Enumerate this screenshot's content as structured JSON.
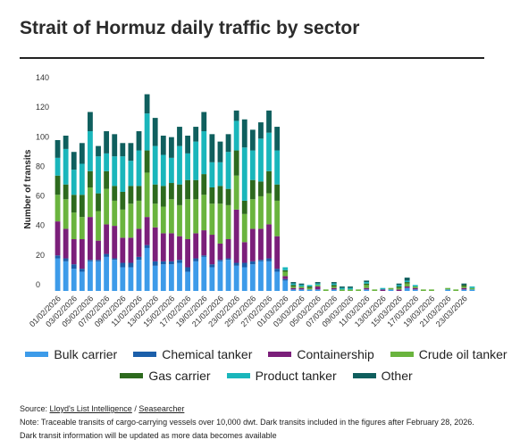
{
  "title": "Strait of Hormuz daily traffic by sector",
  "source": {
    "prefix": "Source: ",
    "link1": "Lloyd's List Intelligence",
    "separator": " / ",
    "link2": "Seasearcher"
  },
  "note_line1": "Note: Traceable transits of cargo-carrying vessels over 10,000 dwt. Dark transits included in the figures after February 28, 2026.",
  "note_line2": "Dark transit information will be updated as more data becomes available",
  "chart_data": {
    "type": "bar",
    "stacked": true,
    "ylabel": "Number of transits",
    "xlabel": "",
    "ylim": [
      0,
      140
    ],
    "yticks": [
      0,
      20,
      40,
      60,
      80,
      100,
      120,
      140
    ],
    "grid": false,
    "legend_position": "bottom",
    "categories": [
      "01/02/2026",
      "02/02/2026",
      "03/02/2026",
      "04/02/2026",
      "05/02/2026",
      "06/02/2026",
      "07/02/2026",
      "08/02/2026",
      "09/02/2026",
      "10/02/2026",
      "11/02/2026",
      "12/02/2026",
      "13/02/2026",
      "14/02/2026",
      "15/02/2026",
      "16/02/2026",
      "17/02/2026",
      "18/02/2026",
      "19/02/2026",
      "20/02/2026",
      "21/02/2026",
      "22/02/2026",
      "23/02/2026",
      "24/02/2026",
      "25/02/2026",
      "26/02/2026",
      "27/02/2026",
      "28/02/2026",
      "01/03/2026",
      "02/03/2026",
      "03/03/2026",
      "04/03/2026",
      "05/03/2026",
      "06/03/2026",
      "07/03/2026",
      "08/03/2026",
      "09/03/2026",
      "10/03/2026",
      "11/03/2026",
      "12/03/2026",
      "13/03/2026",
      "14/03/2026",
      "15/03/2026",
      "16/03/2026",
      "17/03/2026",
      "18/03/2026",
      "19/03/2026",
      "20/03/2026",
      "21/03/2026",
      "22/03/2026",
      "23/03/2026",
      "24/03/2026"
    ],
    "xtick_labels": [
      "01/02/2026",
      "03/02/2026",
      "05/02/2026",
      "07/02/2026",
      "09/02/2026",
      "11/02/2026",
      "13/02/2026",
      "15/02/2026",
      "17/02/2026",
      "19/02/2026",
      "21/02/2026",
      "23/02/2026",
      "25/02/2026",
      "27/02/2026",
      "01/03/2026",
      "03/03/2026",
      "05/03/2026",
      "07/03/2026",
      "09/03/2026",
      "11/03/2026",
      "13/03/2026",
      "15/03/2026",
      "17/03/2026",
      "19/03/2026",
      "21/03/2026",
      "23/03/2026"
    ],
    "series": [
      {
        "name": "Bulk carrier",
        "color": "#3d9be9",
        "values": [
          22,
          20,
          15,
          13,
          20,
          20,
          23,
          21,
          16,
          16,
          21,
          29,
          17,
          18,
          18,
          19,
          13,
          20,
          23,
          16,
          20,
          21,
          17,
          16,
          18,
          20,
          20,
          13,
          7,
          1,
          1,
          1,
          1,
          0,
          1,
          0,
          0,
          0,
          1,
          0,
          0,
          1,
          0,
          2,
          1,
          0,
          0,
          0,
          1,
          0,
          1,
          1
        ]
      },
      {
        "name": "Chemical tanker",
        "color": "#1b5faa",
        "values": [
          2,
          2,
          3,
          2,
          1,
          1,
          2,
          1,
          3,
          3,
          2,
          2,
          3,
          2,
          2,
          2,
          3,
          2,
          1,
          2,
          1,
          1,
          2,
          3,
          2,
          1,
          2,
          2,
          1,
          0,
          0,
          0,
          0,
          0,
          0,
          0,
          0,
          0,
          0,
          0,
          0,
          0,
          0,
          0,
          0,
          0,
          0,
          0,
          0,
          0,
          0,
          0
        ]
      },
      {
        "name": "Containership",
        "color": "#7b1f7a",
        "values": [
          23,
          20,
          17,
          20,
          29,
          13,
          20,
          22,
          17,
          17,
          19,
          19,
          23,
          19,
          19,
          16,
          19,
          17,
          17,
          20,
          11,
          13,
          36,
          14,
          22,
          21,
          23,
          22,
          2,
          1,
          1,
          0,
          2,
          0,
          1,
          0,
          0,
          0,
          1,
          0,
          1,
          0,
          1,
          1,
          1,
          0,
          0,
          0,
          0,
          0,
          1,
          0
        ]
      },
      {
        "name": "Crude oil tanker",
        "color": "#6ab43e",
        "values": [
          18,
          20,
          18,
          15,
          20,
          20,
          24,
          17,
          19,
          23,
          19,
          30,
          16,
          18,
          23,
          21,
          27,
          23,
          24,
          21,
          27,
          23,
          23,
          19,
          20,
          22,
          21,
          24,
          3,
          1,
          1,
          1,
          1,
          1,
          1,
          1,
          1,
          1,
          2,
          1,
          0,
          1,
          1,
          2,
          1,
          1,
          1,
          0,
          1,
          1,
          1,
          1
        ]
      },
      {
        "name": "Gas carrier",
        "color": "#2d6a1e",
        "values": [
          13,
          10,
          12,
          15,
          11,
          12,
          12,
          10,
          12,
          12,
          10,
          15,
          13,
          14,
          11,
          14,
          13,
          13,
          14,
          11,
          12,
          11,
          17,
          9,
          13,
          10,
          15,
          11,
          1,
          1,
          0,
          1,
          0,
          0,
          1,
          0,
          0,
          0,
          1,
          0,
          0,
          0,
          1,
          1,
          0,
          0,
          0,
          0,
          0,
          0,
          1,
          0
        ]
      },
      {
        "name": "Product tanker",
        "color": "#1ab6bb",
        "values": [
          12,
          24,
          17,
          21,
          27,
          25,
          12,
          20,
          24,
          17,
          24,
          25,
          26,
          21,
          17,
          26,
          18,
          26,
          29,
          17,
          16,
          25,
          20,
          36,
          20,
          29,
          26,
          23,
          2,
          1,
          1,
          1,
          1,
          0,
          1,
          1,
          1,
          0,
          1,
          0,
          1,
          0,
          1,
          1,
          1,
          0,
          0,
          0,
          0,
          0,
          0,
          1
        ]
      },
      {
        "name": "Other",
        "color": "#0f5f5e",
        "values": [
          12,
          9,
          12,
          14,
          13,
          7,
          15,
          15,
          9,
          12,
          13,
          13,
          19,
          13,
          14,
          13,
          12,
          10,
          13,
          19,
          14,
          12,
          7,
          19,
          14,
          11,
          15,
          16,
          0,
          1,
          1,
          0,
          1,
          0,
          1,
          1,
          1,
          0,
          1,
          0,
          0,
          0,
          1,
          2,
          0,
          0,
          0,
          0,
          0,
          0,
          1,
          0
        ]
      }
    ]
  }
}
